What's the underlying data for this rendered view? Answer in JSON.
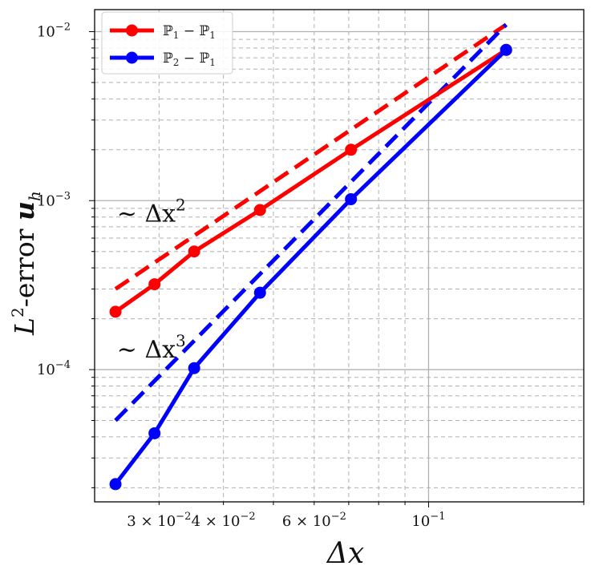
{
  "chart_data": {
    "type": "line",
    "xscale": "log",
    "yscale": "log",
    "xlim": [
      0.0225,
      0.2
    ],
    "ylim": [
      1.65e-05,
      0.0135
    ],
    "grid": "both-major-minor",
    "xlabel": "Δx",
    "ylabel_parts": {
      "L": "L",
      "sup": "2",
      "mid": "-error ",
      "u": "u",
      "sub": "h"
    },
    "x_ticks": [
      {
        "value": 0.03,
        "mant": "3 × 10",
        "exp": "−2"
      },
      {
        "value": 0.04,
        "mant": "4 × 10",
        "exp": "−2"
      },
      {
        "value": 0.06,
        "mant": "6 × 10",
        "exp": "−2"
      },
      {
        "value": 0.1,
        "mant": "10",
        "exp": "−1"
      }
    ],
    "y_ticks": [
      {
        "value": 0.0001,
        "mant": "10",
        "exp": "−4"
      },
      {
        "value": 0.001,
        "mant": "10",
        "exp": "−3"
      },
      {
        "value": 0.01,
        "mant": "10",
        "exp": "−2"
      }
    ],
    "legend_position": "top-left",
    "series": [
      {
        "name": "ℙ1 − ℙ1",
        "legend_parts": [
          "ℙ",
          "1",
          " − ℙ",
          "1"
        ],
        "color": "#ff0000",
        "style": "solid-marker",
        "x": [
          0.0247,
          0.0294,
          0.0351,
          0.0471,
          0.0707,
          0.1414
        ],
        "y": [
          0.00022,
          0.00032,
          0.0005,
          0.00088,
          0.002,
          0.0078
        ]
      },
      {
        "name": "ℙ2 − ℙ1",
        "legend_parts": [
          "ℙ",
          "2",
          " − ℙ",
          "1"
        ],
        "color": "#0000ff",
        "style": "solid-marker",
        "x": [
          0.0247,
          0.0294,
          0.0351,
          0.0471,
          0.0707,
          0.1414
        ],
        "y": [
          2.1e-05,
          4.2e-05,
          0.000102,
          0.000285,
          0.00102,
          0.0078
        ]
      }
    ],
    "reference_lines": [
      {
        "color": "#ff0000",
        "x": [
          0.0247,
          0.1414
        ],
        "y": [
          0.0003,
          0.011
        ]
      },
      {
        "color": "#0000ff",
        "x": [
          0.0247,
          0.1414
        ],
        "y": [
          5e-05,
          0.011
        ]
      }
    ],
    "annotations": [
      {
        "prefix": "∼ Δx",
        "sup": "2",
        "x": 0.0245,
        "y": 0.00075
      },
      {
        "prefix": "∼ Δx",
        "sup": "3",
        "x": 0.0245,
        "y": 0.000118
      }
    ]
  }
}
